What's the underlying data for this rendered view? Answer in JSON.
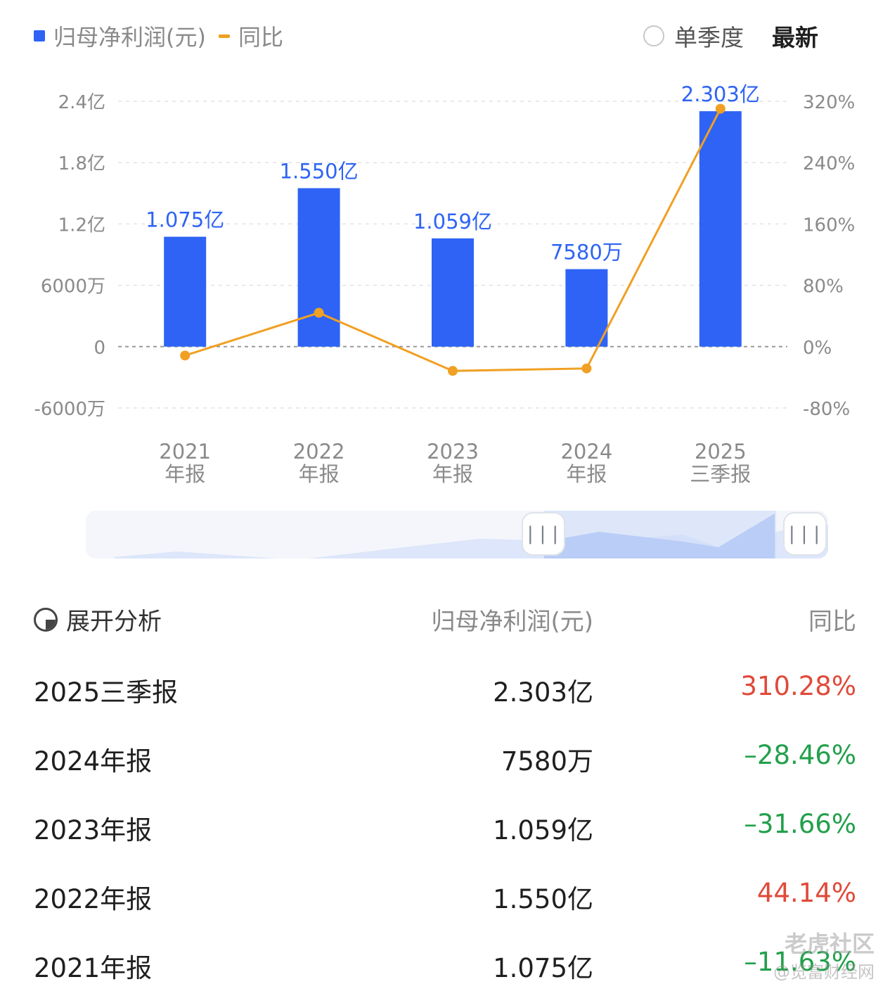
{
  "legend": {
    "bar_label": "归母净利润(元)",
    "line_label": "同比"
  },
  "controls": {
    "single_quarter": "单季度",
    "latest": "最新"
  },
  "chart_data": {
    "type": "bar",
    "categories": [
      "2021\n年报",
      "2022\n年报",
      "2023\n年报",
      "2024\n年报",
      "2025\n三季报"
    ],
    "series": [
      {
        "name": "归母净利润(元)",
        "type": "bar",
        "axis": "left",
        "values": [
          107500000,
          155000000,
          105900000,
          75800000,
          230300000
        ],
        "labels": [
          "1.075亿",
          "1.550亿",
          "1.059亿",
          "7580万",
          "2.303亿"
        ],
        "color": "#2e63f5"
      },
      {
        "name": "同比",
        "type": "line",
        "axis": "right",
        "values": [
          -11.63,
          44.14,
          -31.66,
          -28.46,
          310.28
        ],
        "color": "#f0a023"
      }
    ],
    "left_axis": {
      "ylim": [
        -60000000,
        240000000
      ],
      "ticks": [
        240000000,
        180000000,
        120000000,
        60000000,
        0,
        -60000000
      ],
      "tick_labels": [
        "2.4亿",
        "1.8亿",
        "1.2亿",
        "6000万",
        "0",
        "-6000万"
      ]
    },
    "right_axis": {
      "ylim": [
        -80,
        320
      ],
      "ticks": [
        320,
        240,
        160,
        80,
        0,
        -80
      ],
      "tick_labels": [
        "320%",
        "240%",
        "160%",
        "80%",
        "0%",
        "-80%"
      ]
    },
    "grid": true,
    "legend_position": "top-left"
  },
  "table": {
    "header": {
      "expand": "展开分析",
      "value_col": "归母净利润(元)",
      "yoy_col": "同比"
    },
    "rows": [
      {
        "period": "2025三季报",
        "value": "2.303亿",
        "yoy": "310.28%",
        "dir": "pos"
      },
      {
        "period": "2024年报",
        "value": "7580万",
        "yoy": "–28.46%",
        "dir": "neg"
      },
      {
        "period": "2023年报",
        "value": "1.059亿",
        "yoy": "–31.66%",
        "dir": "neg"
      },
      {
        "period": "2022年报",
        "value": "1.550亿",
        "yoy": "44.14%",
        "dir": "pos"
      },
      {
        "period": "2021年报",
        "value": "1.075亿",
        "yoy": "–11.63%",
        "dir": "neg"
      }
    ]
  },
  "slider": {
    "handle_glyph": "|||"
  },
  "watermark": {
    "brand": "老虎社区",
    "sub": "@览富财经网"
  }
}
